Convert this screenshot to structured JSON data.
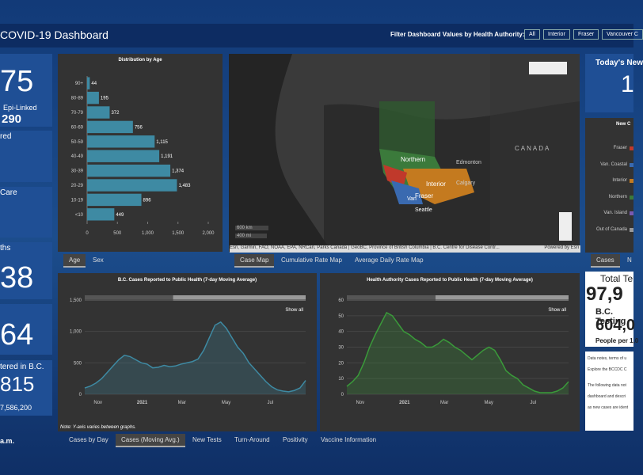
{
  "header": {
    "title": "COVID-19 Dashboard",
    "filter_label": "Filter Dashboard Values by Health Authority:",
    "filter_buttons": [
      "All",
      "Interior",
      "Fraser",
      "Vancouver C"
    ]
  },
  "left": {
    "cases": "75",
    "epi": "Epi-Linked",
    "epi_value": "290",
    "recovered": "red",
    "care": "Care",
    "deaths": "ths",
    "deaths_value": "38",
    "v64": "64",
    "vacc": "tered in B.C.",
    "vacc_value": "815",
    "pop": "7,586,200",
    "updated": "a.m."
  },
  "age_chart": {
    "type": "bar",
    "title": "Distribution by Age",
    "categories": [
      "90+",
      "80-89",
      "70-79",
      "60-69",
      "50-59",
      "40-49",
      "30-39",
      "20-29",
      "10-19",
      "<10"
    ],
    "values": [
      44,
      195,
      372,
      756,
      1115,
      1191,
      1374,
      1483,
      896,
      449
    ],
    "value_labels": [
      "44",
      "195",
      "372",
      "756",
      "1,115",
      "1,191",
      "1,374",
      "1,483",
      "896",
      "449"
    ],
    "color": "#3e8aa3",
    "xlim": [
      0,
      2000
    ],
    "xticks": [
      0,
      500,
      {
        "value": 1000,
        "label": "1,000"
      },
      {
        "value": 1500,
        "label": "1,500"
      },
      {
        "value": 2000,
        "label": "2,000"
      }
    ],
    "tabs": [
      "Age",
      "Sex"
    ]
  },
  "map": {
    "labels": [
      "Northern",
      "Interior",
      "Fraser",
      "Van",
      "Seattle",
      "Edmonton",
      "Calgary",
      "CANADA"
    ],
    "scale": [
      "600 km",
      "400 mi"
    ],
    "attribution": "Esri, Garmin, FAO, NOAA, EPA, NRCan, Parks Canada | GeoBC, Province of British Columbia | B.C. Centre for Disease Contr...",
    "powered": "Powered by Esri",
    "tabs": [
      "Case Map",
      "Cumulative Rate Map",
      "Average Daily Rate Map"
    ]
  },
  "right": {
    "today": "Today's New",
    "today_value": "1",
    "new_cases": "New C",
    "legend": [
      "Fraser",
      "Van. Coastal",
      "Interior",
      "Northern",
      "Van. Island",
      "Out of Canada"
    ],
    "tabs": [
      "Cases",
      "N"
    ],
    "total_tests": "Total Te",
    "total_value": "97,9",
    "bc_testing": "B.C. Testing",
    "bc_value": "604,0",
    "people": "People per 1,0",
    "notes": [
      "Data notes, terms of u",
      "Explore the BCCDC C",
      "The following data not",
      "dashboard and descri",
      "as new cases are ident"
    ]
  },
  "bc_chart": {
    "type": "line",
    "title": "B.C. Cases Reported to Public Health (7-day Moving Average)",
    "color": "#3e8aa3",
    "values": [
      100,
      130,
      180,
      250,
      350,
      450,
      550,
      620,
      600,
      550,
      500,
      480,
      420,
      430,
      460,
      440,
      450,
      480,
      500,
      520,
      560,
      700,
      900,
      1100,
      1150,
      1050,
      900,
      750,
      650,
      500,
      400,
      300,
      200,
      120,
      70,
      50,
      40,
      60,
      100,
      220
    ],
    "ylim": [
      0,
      1500
    ],
    "yticks": [
      0,
      500,
      {
        "value": 1000,
        "label": "1,000"
      },
      {
        "value": 1500,
        "label": "1,500"
      }
    ],
    "x_labels": [
      "Nov",
      "2021",
      "Mar",
      "May",
      "Jul"
    ],
    "show_all": "Show all"
  },
  "ha_chart": {
    "type": "line",
    "title": "Health Authority Cases Reported to Public Health (7-day Moving Average)",
    "color": "#3a9a3a",
    "values": [
      5,
      8,
      12,
      20,
      30,
      38,
      45,
      52,
      50,
      45,
      40,
      38,
      35,
      33,
      30,
      30,
      32,
      35,
      33,
      30,
      28,
      25,
      22,
      25,
      28,
      30,
      28,
      22,
      15,
      12,
      10,
      6,
      4,
      2,
      1,
      1,
      1,
      2,
      4,
      8
    ],
    "ylim": [
      0,
      60
    ],
    "yticks": [
      0,
      10,
      20,
      30,
      40,
      50,
      60
    ],
    "x_labels": [
      "Nov",
      "2021",
      "Mar",
      "May",
      "Jul"
    ],
    "show_all": "Show all"
  },
  "note": "Note: Y-axis varies between graphs.",
  "bottom_tabs": [
    "Cases by Day",
    "Cases (Moving Avg.)",
    "New Tests",
    "Turn-Around",
    "Positivity",
    "Vaccine Information"
  ]
}
